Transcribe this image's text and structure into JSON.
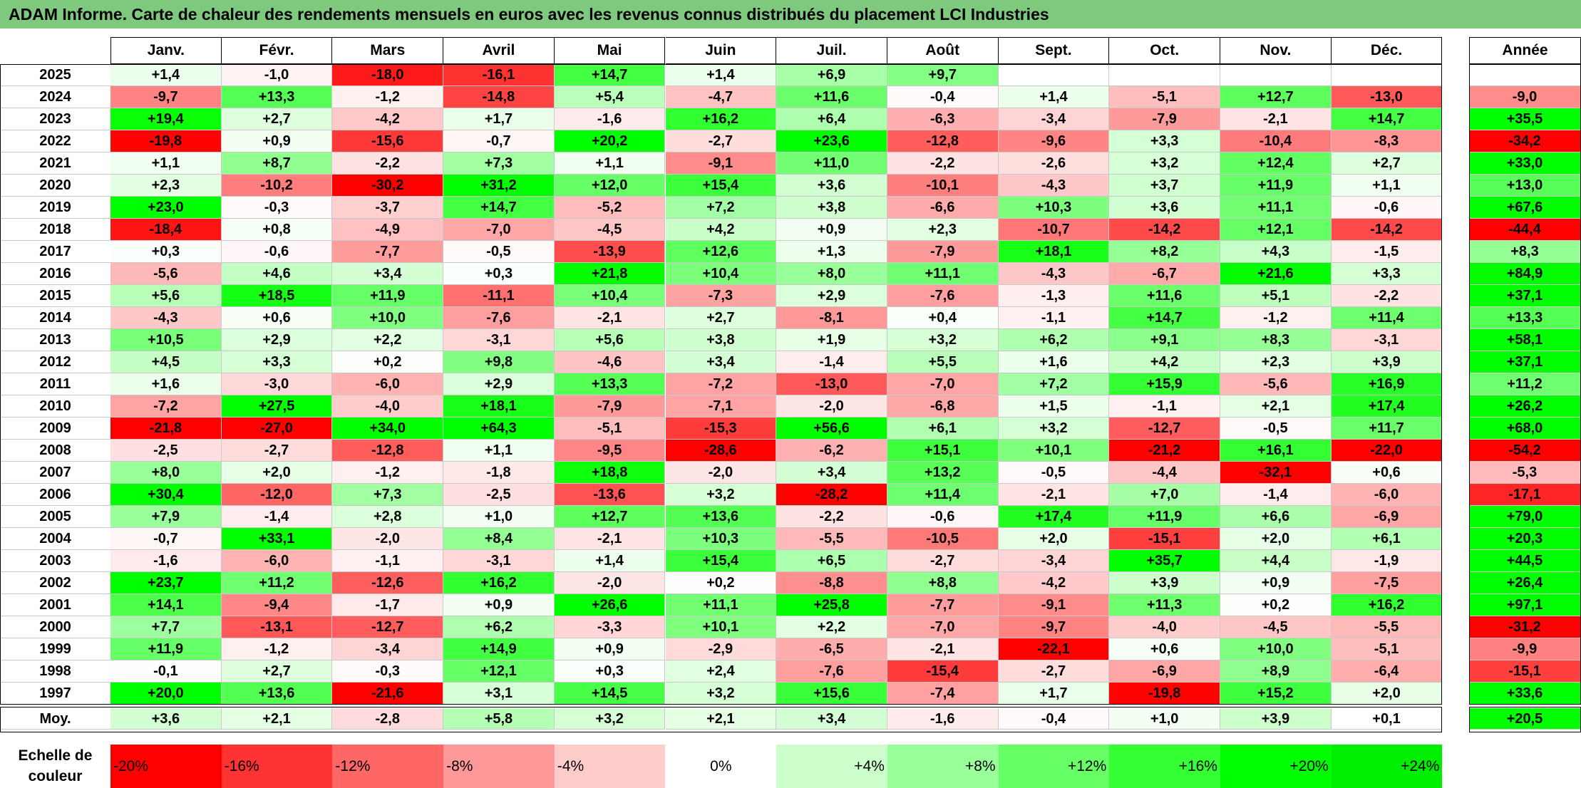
{
  "title": "ADAM Informe. Carte de chaleur des rendements mensuels en euros avec les revenus connus distribués du placement LCI Industries",
  "chart_data": {
    "type": "heatmap",
    "title": "ADAM Informe. Carte de chaleur des rendements mensuels en euros avec les revenus connus distribués du placement LCI Industries",
    "columns": [
      "Janv.",
      "Févr.",
      "Mars",
      "Avril",
      "Mai",
      "Juin",
      "Juil.",
      "Août",
      "Sept.",
      "Oct.",
      "Nov.",
      "Déc."
    ],
    "year_column_label": "Année",
    "rows": [
      {
        "year": "2025",
        "values": [
          "+1,4",
          "-1,0",
          "-18,0",
          "-16,1",
          "+14,7",
          "+1,4",
          "+6,9",
          "+9,7",
          "",
          "",
          "",
          ""
        ],
        "annual": ""
      },
      {
        "year": "2024",
        "values": [
          "-9,7",
          "+13,3",
          "-1,2",
          "-14,8",
          "+5,4",
          "-4,7",
          "+11,6",
          "-0,4",
          "+1,4",
          "-5,1",
          "+12,7",
          "-13,0"
        ],
        "annual": "-9,0"
      },
      {
        "year": "2023",
        "values": [
          "+19,4",
          "+2,7",
          "-4,2",
          "+1,7",
          "-1,6",
          "+16,2",
          "+6,4",
          "-6,3",
          "-3,4",
          "-7,9",
          "-2,1",
          "+14,7"
        ],
        "annual": "+35,5"
      },
      {
        "year": "2022",
        "values": [
          "-19,8",
          "+0,9",
          "-15,6",
          "-0,7",
          "+20,2",
          "-2,7",
          "+23,6",
          "-12,8",
          "-9,6",
          "+3,3",
          "-10,4",
          "-8,3"
        ],
        "annual": "-34,2"
      },
      {
        "year": "2021",
        "values": [
          "+1,1",
          "+8,7",
          "-2,2",
          "+7,3",
          "+1,1",
          "-9,1",
          "+11,0",
          "-2,2",
          "-2,6",
          "+3,2",
          "+12,4",
          "+2,7"
        ],
        "annual": "+33,0"
      },
      {
        "year": "2020",
        "values": [
          "+2,3",
          "-10,2",
          "-30,2",
          "+31,2",
          "+12,0",
          "+15,4",
          "+3,6",
          "-10,1",
          "-4,3",
          "+3,7",
          "+11,9",
          "+1,1"
        ],
        "annual": "+13,0"
      },
      {
        "year": "2019",
        "values": [
          "+23,0",
          "-0,3",
          "-3,7",
          "+14,7",
          "-5,2",
          "+7,2",
          "+3,8",
          "-6,6",
          "+10,3",
          "+3,6",
          "+11,1",
          "-0,6"
        ],
        "annual": "+67,6"
      },
      {
        "year": "2018",
        "values": [
          "-18,4",
          "+0,8",
          "-4,9",
          "-7,0",
          "-4,5",
          "+4,2",
          "+0,9",
          "+2,3",
          "-10,7",
          "-14,2",
          "+12,1",
          "-14,2"
        ],
        "annual": "-44,4"
      },
      {
        "year": "2017",
        "values": [
          "+0,3",
          "-0,6",
          "-7,7",
          "-0,5",
          "-13,9",
          "+12,6",
          "+1,3",
          "-7,9",
          "+18,1",
          "+8,2",
          "+4,3",
          "-1,5"
        ],
        "annual": "+8,3"
      },
      {
        "year": "2016",
        "values": [
          "-5,6",
          "+4,6",
          "+3,4",
          "+0,3",
          "+21,8",
          "+10,4",
          "+8,0",
          "+11,1",
          "-4,3",
          "-6,7",
          "+21,6",
          "+3,3"
        ],
        "annual": "+84,9"
      },
      {
        "year": "2015",
        "values": [
          "+5,6",
          "+18,5",
          "+11,9",
          "-11,1",
          "+10,4",
          "-7,3",
          "+2,9",
          "-7,6",
          "-1,3",
          "+11,6",
          "+5,1",
          "-2,2"
        ],
        "annual": "+37,1"
      },
      {
        "year": "2014",
        "values": [
          "-4,3",
          "+0,6",
          "+10,0",
          "-7,6",
          "-2,1",
          "+2,7",
          "-8,1",
          "+0,4",
          "-1,1",
          "+14,7",
          "-1,2",
          "+11,4"
        ],
        "annual": "+13,3"
      },
      {
        "year": "2013",
        "values": [
          "+10,5",
          "+2,9",
          "+2,2",
          "-3,1",
          "+5,6",
          "+3,8",
          "+1,9",
          "+3,2",
          "+6,2",
          "+9,1",
          "+8,3",
          "-3,1"
        ],
        "annual": "+58,1"
      },
      {
        "year": "2012",
        "values": [
          "+4,5",
          "+3,3",
          "+0,2",
          "+9,8",
          "-4,6",
          "+3,4",
          "-1,4",
          "+5,5",
          "+1,6",
          "+4,2",
          "+2,3",
          "+3,9"
        ],
        "annual": "+37,1"
      },
      {
        "year": "2011",
        "values": [
          "+1,6",
          "-3,0",
          "-6,0",
          "+2,9",
          "+13,3",
          "-7,2",
          "-13,0",
          "-7,0",
          "+7,2",
          "+15,9",
          "-5,6",
          "+16,9"
        ],
        "annual": "+11,2"
      },
      {
        "year": "2010",
        "values": [
          "-7,2",
          "+27,5",
          "-4,0",
          "+18,1",
          "-7,9",
          "-7,1",
          "-2,0",
          "-6,8",
          "+1,5",
          "-1,1",
          "+2,1",
          "+17,4"
        ],
        "annual": "+26,2"
      },
      {
        "year": "2009",
        "values": [
          "-21,8",
          "-27,0",
          "+34,0",
          "+64,3",
          "-5,1",
          "-15,3",
          "+56,6",
          "+6,1",
          "+3,2",
          "-12,7",
          "-0,5",
          "+11,7"
        ],
        "annual": "+68,0"
      },
      {
        "year": "2008",
        "values": [
          "-2,5",
          "-2,7",
          "-12,8",
          "+1,1",
          "-9,5",
          "-28,6",
          "-6,2",
          "+15,1",
          "+10,1",
          "-21,2",
          "+16,1",
          "-22,0"
        ],
        "annual": "-54,2"
      },
      {
        "year": "2007",
        "values": [
          "+8,0",
          "+2,0",
          "-1,2",
          "-1,8",
          "+18,8",
          "-2,0",
          "+3,4",
          "+13,2",
          "-0,5",
          "-4,4",
          "-32,1",
          "+0,6"
        ],
        "annual": "-5,3"
      },
      {
        "year": "2006",
        "values": [
          "+30,4",
          "-12,0",
          "+7,3",
          "-2,5",
          "-13,6",
          "+3,2",
          "-28,2",
          "+11,4",
          "-2,1",
          "+7,0",
          "-1,4",
          "-6,0"
        ],
        "annual": "-17,1"
      },
      {
        "year": "2005",
        "values": [
          "+7,9",
          "-1,4",
          "+2,8",
          "+1,0",
          "+12,7",
          "+13,6",
          "-2,2",
          "-0,6",
          "+17,4",
          "+11,9",
          "+6,6",
          "-6,9"
        ],
        "annual": "+79,0"
      },
      {
        "year": "2004",
        "values": [
          "-0,7",
          "+33,1",
          "-2,0",
          "+8,4",
          "-2,1",
          "+10,3",
          "-5,5",
          "-10,5",
          "+2,0",
          "-15,1",
          "+2,0",
          "+6,1"
        ],
        "annual": "+20,3"
      },
      {
        "year": "2003",
        "values": [
          "-1,6",
          "-6,0",
          "-1,1",
          "-3,1",
          "+1,4",
          "+15,4",
          "+6,5",
          "-2,7",
          "-3,4",
          "+35,7",
          "+4,4",
          "-1,9"
        ],
        "annual": "+44,5"
      },
      {
        "year": "2002",
        "values": [
          "+23,7",
          "+11,2",
          "-12,6",
          "+16,2",
          "-2,0",
          "+0,2",
          "-8,8",
          "+8,8",
          "-4,2",
          "+3,9",
          "+0,9",
          "-7,5"
        ],
        "annual": "+26,4"
      },
      {
        "year": "2001",
        "values": [
          "+14,1",
          "-9,4",
          "-1,7",
          "+0,9",
          "+26,6",
          "+11,1",
          "+25,8",
          "-7,7",
          "-9,1",
          "+11,3",
          "+0,2",
          "+16,2"
        ],
        "annual": "+97,1"
      },
      {
        "year": "2000",
        "values": [
          "+7,7",
          "-13,1",
          "-12,7",
          "+6,2",
          "-3,3",
          "+10,1",
          "+2,2",
          "-7,0",
          "-9,7",
          "-4,0",
          "-4,5",
          "-5,5"
        ],
        "annual": "-31,2"
      },
      {
        "year": "1999",
        "values": [
          "+11,9",
          "-1,2",
          "-3,4",
          "+14,9",
          "+0,9",
          "-2,9",
          "-6,5",
          "-2,1",
          "-22,1",
          "+0,6",
          "+10,0",
          "-5,1"
        ],
        "annual": "-9,9"
      },
      {
        "year": "1998",
        "values": [
          "-0,1",
          "+2,7",
          "-0,3",
          "+12,1",
          "+0,3",
          "+2,4",
          "-7,6",
          "-15,4",
          "-2,7",
          "-6,9",
          "+8,9",
          "-6,4"
        ],
        "annual": "-15,1"
      },
      {
        "year": "1997",
        "values": [
          "+20,0",
          "+13,6",
          "-21,6",
          "+3,1",
          "+14,5",
          "+3,2",
          "+15,6",
          "-7,4",
          "+1,7",
          "-19,8",
          "+15,2",
          "+2,0"
        ],
        "annual": "+33,6"
      }
    ],
    "average": {
      "label": "Moy.",
      "values": [
        "+3,6",
        "+2,1",
        "-2,8",
        "+5,8",
        "+3,2",
        "+2,1",
        "+3,4",
        "-1,6",
        "-0,4",
        "+1,0",
        "+3,9",
        "+0,1"
      ],
      "annual": "+20,5"
    },
    "scale": {
      "label": "Echelle de couleur",
      "stops": [
        {
          "label": "-20%",
          "value": -20,
          "color": "#ff0000"
        },
        {
          "label": "-16%",
          "value": -16,
          "color": "#ff3333"
        },
        {
          "label": "-12%",
          "value": -12,
          "color": "#ff6666"
        },
        {
          "label": "-8%",
          "value": -8,
          "color": "#ff9999"
        },
        {
          "label": "-4%",
          "value": -4,
          "color": "#ffcccc"
        },
        {
          "label": "0%",
          "value": 0,
          "color": "#ffffff"
        },
        {
          "label": "+4%",
          "value": 4,
          "color": "#ccffcc"
        },
        {
          "label": "+8%",
          "value": 8,
          "color": "#99ff99"
        },
        {
          "label": "+12%",
          "value": 12,
          "color": "#66ff66"
        },
        {
          "label": "+16%",
          "value": 16,
          "color": "#33ff33"
        },
        {
          "label": "+20%",
          "value": 20,
          "color": "#00ff00"
        },
        {
          "label": "+24%",
          "value": 24,
          "color": "#00ee00"
        }
      ]
    }
  }
}
